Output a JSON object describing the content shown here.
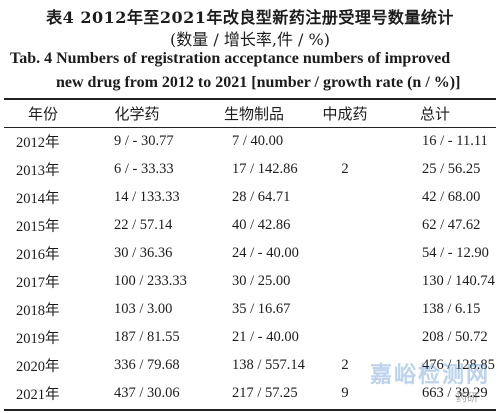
{
  "caption": {
    "zh_line1": "表4   2012年至2021年改良型新药注册受理号数量统计",
    "zh_line2": "(数量 / 增长率,件 / %)",
    "en_line1": "Tab. 4   Numbers of registration acceptance numbers of improved",
    "en_line2": "new drug from 2012 to 2021 [number / growth rate (n / %)]"
  },
  "table": {
    "headers": [
      "年份",
      "化学药",
      "生物制品",
      "中成药",
      "总计"
    ],
    "rows": [
      [
        "2012年",
        "9 / - 30.77",
        "7 / 40.00",
        "",
        "16 / - 11.11"
      ],
      [
        "2013年",
        "6 / - 33.33",
        "17 / 142.86",
        "2",
        "25 / 56.25"
      ],
      [
        "2014年",
        "14 / 133.33",
        "28 / 64.71",
        "",
        "42 / 68.00"
      ],
      [
        "2015年",
        "22 / 57.14",
        "40 / 42.86",
        "",
        "62 / 47.62"
      ],
      [
        "2016年",
        "30 / 36.36",
        "24 / - 40.00",
        "",
        "54 / - 12.90"
      ],
      [
        "2017年",
        "100 / 233.33",
        "30 / 25.00",
        "",
        "130 / 140.74"
      ],
      [
        "2018年",
        "103 / 3.00",
        "35 / 16.67",
        "",
        "138 / 6.15"
      ],
      [
        "2019年",
        "187 / 81.55",
        "21 / - 40.00",
        "",
        "208 / 50.72"
      ],
      [
        "2020年",
        "336 / 79.68",
        "138 / 557.14",
        "2",
        "476 / 128.85"
      ],
      [
        "2021年",
        "437 / 30.06",
        "217 / 57.25",
        "9",
        "663 / 39.29"
      ]
    ]
  },
  "watermark": {
    "brand": "嘉峪检测网",
    "source": "药研"
  }
}
